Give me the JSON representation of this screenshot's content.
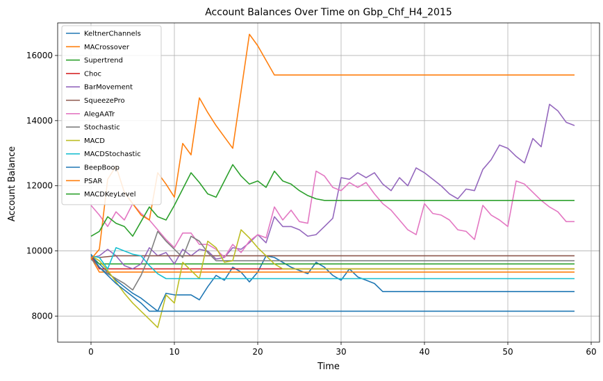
{
  "chart_data": {
    "type": "line",
    "title": "Account Balances Over Time on Gbp_Chf_H4_2015",
    "xlabel": "Time",
    "ylabel": "Account Balance",
    "xlim": [
      -4,
      61
    ],
    "ylim": [
      7200,
      17000
    ],
    "xticks": [
      0,
      10,
      20,
      30,
      40,
      50,
      60
    ],
    "yticks": [
      8000,
      10000,
      12000,
      14000,
      16000
    ],
    "grid": true,
    "legend_position": "top-left",
    "series": [
      {
        "name": "KeltnerChannels",
        "color": "#1f77b4",
        "points": [
          [
            0,
            9850
          ],
          [
            1,
            9600
          ],
          [
            2,
            9350
          ],
          [
            3,
            9100
          ],
          [
            4,
            8900
          ],
          [
            5,
            8700
          ],
          [
            6,
            8550
          ],
          [
            7,
            8350
          ],
          [
            8,
            8150
          ],
          [
            9,
            8700
          ],
          [
            10,
            8650
          ],
          [
            11,
            8650
          ],
          [
            12,
            8650
          ],
          [
            13,
            8500
          ],
          [
            14,
            8900
          ],
          [
            15,
            9250
          ],
          [
            16,
            9100
          ],
          [
            17,
            9500
          ],
          [
            18,
            9350
          ],
          [
            19,
            9050
          ],
          [
            20,
            9350
          ],
          [
            21,
            9850
          ],
          [
            22,
            9800
          ],
          [
            23,
            9650
          ],
          [
            24,
            9500
          ],
          [
            25,
            9400
          ],
          [
            26,
            9300
          ],
          [
            27,
            9650
          ],
          [
            28,
            9500
          ],
          [
            29,
            9250
          ],
          [
            30,
            9100
          ],
          [
            31,
            9450
          ],
          [
            32,
            9200
          ],
          [
            33,
            9100
          ],
          [
            34,
            9000
          ],
          [
            35,
            8750
          ],
          [
            58,
            8750
          ]
        ]
      },
      {
        "name": "MACrossover",
        "color": "#ff7f0e",
        "points": [
          [
            0,
            9800
          ],
          [
            1,
            9350
          ],
          [
            3,
            9350
          ],
          [
            58,
            9350
          ]
        ]
      },
      {
        "name": "Supertrend",
        "color": "#2ca02c",
        "points": [
          [
            0,
            9800
          ],
          [
            1,
            9600
          ],
          [
            3,
            9600
          ],
          [
            58,
            9600
          ]
        ]
      },
      {
        "name": "Choc",
        "color": "#d62728",
        "points": [
          [
            0,
            9850
          ],
          [
            1,
            9450
          ],
          [
            3,
            9450
          ],
          [
            58,
            9450
          ]
        ]
      },
      {
        "name": "BarMovement",
        "color": "#9467bd",
        "points": [
          [
            0,
            9800
          ],
          [
            1,
            9850
          ],
          [
            2,
            10050
          ],
          [
            3,
            9850
          ],
          [
            4,
            9550
          ],
          [
            5,
            9450
          ],
          [
            6,
            9600
          ],
          [
            7,
            10100
          ],
          [
            8,
            9850
          ],
          [
            9,
            9950
          ],
          [
            10,
            9600
          ],
          [
            11,
            10050
          ],
          [
            12,
            9850
          ],
          [
            13,
            10050
          ],
          [
            14,
            10000
          ],
          [
            15,
            9750
          ],
          [
            16,
            9800
          ],
          [
            17,
            10100
          ],
          [
            18,
            10050
          ],
          [
            19,
            10250
          ],
          [
            20,
            10500
          ],
          [
            21,
            10250
          ],
          [
            22,
            11050
          ],
          [
            23,
            10750
          ],
          [
            24,
            10750
          ],
          [
            25,
            10650
          ],
          [
            26,
            10450
          ],
          [
            27,
            10500
          ],
          [
            28,
            10750
          ],
          [
            29,
            11000
          ],
          [
            30,
            12250
          ],
          [
            31,
            12200
          ],
          [
            32,
            12400
          ],
          [
            33,
            12250
          ],
          [
            34,
            12400
          ],
          [
            35,
            12050
          ],
          [
            36,
            11850
          ],
          [
            37,
            12250
          ],
          [
            38,
            12000
          ],
          [
            39,
            12550
          ],
          [
            40,
            12400
          ],
          [
            41,
            12200
          ],
          [
            42,
            12000
          ],
          [
            43,
            11750
          ],
          [
            44,
            11600
          ],
          [
            45,
            11900
          ],
          [
            46,
            11850
          ],
          [
            47,
            12500
          ],
          [
            48,
            12800
          ],
          [
            49,
            13250
          ],
          [
            50,
            13150
          ],
          [
            51,
            12900
          ],
          [
            52,
            12700
          ],
          [
            53,
            13450
          ],
          [
            54,
            13200
          ],
          [
            55,
            14500
          ],
          [
            56,
            14300
          ],
          [
            57,
            13950
          ],
          [
            58,
            13850
          ]
        ]
      },
      {
        "name": "SqueezePro",
        "color": "#8c564b",
        "points": [
          [
            0,
            9850
          ],
          [
            1,
            9800
          ],
          [
            3,
            9850
          ],
          [
            58,
            9850
          ]
        ]
      },
      {
        "name": "AlegAATr",
        "color": "#e377c2",
        "points": [
          [
            0,
            11400
          ],
          [
            1,
            11100
          ],
          [
            2,
            10750
          ],
          [
            3,
            11200
          ],
          [
            4,
            10950
          ],
          [
            5,
            11450
          ],
          [
            6,
            11150
          ],
          [
            7,
            10950
          ],
          [
            8,
            10650
          ],
          [
            9,
            10350
          ],
          [
            10,
            10100
          ],
          [
            11,
            10550
          ],
          [
            12,
            10550
          ],
          [
            13,
            10200
          ],
          [
            14,
            10200
          ],
          [
            15,
            10050
          ],
          [
            16,
            9800
          ],
          [
            17,
            10200
          ],
          [
            18,
            9950
          ],
          [
            19,
            10300
          ],
          [
            20,
            10500
          ],
          [
            21,
            10400
          ],
          [
            22,
            11350
          ],
          [
            23,
            10950
          ],
          [
            24,
            11250
          ],
          [
            25,
            10900
          ],
          [
            26,
            10850
          ],
          [
            27,
            12450
          ],
          [
            28,
            12300
          ],
          [
            29,
            11950
          ],
          [
            30,
            11850
          ],
          [
            31,
            12100
          ],
          [
            32,
            11950
          ],
          [
            33,
            12100
          ],
          [
            34,
            11750
          ],
          [
            35,
            11450
          ],
          [
            36,
            11250
          ],
          [
            37,
            10950
          ],
          [
            38,
            10650
          ],
          [
            39,
            10500
          ],
          [
            40,
            11450
          ],
          [
            41,
            11150
          ],
          [
            42,
            11100
          ],
          [
            43,
            10950
          ],
          [
            44,
            10650
          ],
          [
            45,
            10600
          ],
          [
            46,
            10350
          ],
          [
            47,
            11400
          ],
          [
            48,
            11100
          ],
          [
            49,
            10950
          ],
          [
            50,
            10750
          ],
          [
            51,
            12150
          ],
          [
            52,
            12050
          ],
          [
            53,
            11800
          ],
          [
            54,
            11550
          ],
          [
            55,
            11350
          ],
          [
            56,
            11200
          ],
          [
            57,
            10900
          ],
          [
            58,
            10900
          ]
        ]
      },
      {
        "name": "Stochastic",
        "color": "#7f7f7f",
        "points": [
          [
            0,
            9750
          ],
          [
            1,
            9500
          ],
          [
            2,
            9300
          ],
          [
            3,
            9150
          ],
          [
            4,
            9000
          ],
          [
            5,
            8800
          ],
          [
            6,
            9250
          ],
          [
            7,
            9850
          ],
          [
            8,
            10600
          ],
          [
            9,
            10300
          ],
          [
            10,
            10050
          ],
          [
            11,
            9800
          ],
          [
            12,
            10450
          ],
          [
            13,
            10300
          ],
          [
            14,
            9950
          ],
          [
            15,
            9700
          ],
          [
            58,
            9700
          ]
        ]
      },
      {
        "name": "MACD",
        "color": "#bcbd22",
        "points": [
          [
            0,
            9850
          ],
          [
            1,
            9700
          ],
          [
            2,
            9400
          ],
          [
            3,
            9050
          ],
          [
            4,
            8700
          ],
          [
            5,
            8400
          ],
          [
            6,
            8150
          ],
          [
            7,
            7900
          ],
          [
            8,
            7650
          ],
          [
            9,
            8650
          ],
          [
            10,
            8400
          ],
          [
            11,
            9650
          ],
          [
            12,
            9400
          ],
          [
            13,
            9150
          ],
          [
            14,
            10300
          ],
          [
            15,
            10100
          ],
          [
            16,
            9650
          ],
          [
            17,
            9700
          ],
          [
            18,
            10650
          ],
          [
            19,
            10400
          ],
          [
            20,
            10100
          ],
          [
            21,
            9850
          ],
          [
            22,
            9600
          ],
          [
            23,
            9450
          ],
          [
            58,
            9450
          ]
        ]
      },
      {
        "name": "MACDStochastic",
        "color": "#17becf",
        "points": [
          [
            0,
            9850
          ],
          [
            1,
            9800
          ],
          [
            2,
            9450
          ],
          [
            3,
            10100
          ],
          [
            4,
            10000
          ],
          [
            5,
            9900
          ],
          [
            6,
            9850
          ],
          [
            7,
            9550
          ],
          [
            8,
            9300
          ],
          [
            9,
            9150
          ],
          [
            58,
            9150
          ]
        ]
      },
      {
        "name": "BeepBoop",
        "color": "#1f77b4",
        "points": [
          [
            0,
            9900
          ],
          [
            1,
            9500
          ],
          [
            2,
            9250
          ],
          [
            3,
            9000
          ],
          [
            4,
            8800
          ],
          [
            5,
            8600
          ],
          [
            6,
            8400
          ],
          [
            7,
            8150
          ],
          [
            58,
            8150
          ]
        ]
      },
      {
        "name": "PSAR",
        "color": "#ff7f0e",
        "points": [
          [
            0,
            9750
          ],
          [
            1,
            10050
          ],
          [
            2,
            12200
          ],
          [
            3,
            12600
          ],
          [
            4,
            11800
          ],
          [
            5,
            11450
          ],
          [
            6,
            11100
          ],
          [
            7,
            10950
          ],
          [
            8,
            12400
          ],
          [
            9,
            12050
          ],
          [
            10,
            11650
          ],
          [
            11,
            13300
          ],
          [
            12,
            12950
          ],
          [
            13,
            14700
          ],
          [
            14,
            14250
          ],
          [
            15,
            13850
          ],
          [
            16,
            13500
          ],
          [
            17,
            13150
          ],
          [
            18,
            14900
          ],
          [
            19,
            16650
          ],
          [
            20,
            16300
          ],
          [
            21,
            15850
          ],
          [
            22,
            15400
          ],
          [
            58,
            15400
          ]
        ]
      },
      {
        "name": "MACDKeyLevel",
        "color": "#2ca02c",
        "points": [
          [
            0,
            10450
          ],
          [
            1,
            10600
          ],
          [
            2,
            11050
          ],
          [
            3,
            10850
          ],
          [
            4,
            10750
          ],
          [
            5,
            10450
          ],
          [
            6,
            10900
          ],
          [
            7,
            11350
          ],
          [
            8,
            11050
          ],
          [
            9,
            10950
          ],
          [
            10,
            11400
          ],
          [
            11,
            11900
          ],
          [
            12,
            12400
          ],
          [
            13,
            12100
          ],
          [
            14,
            11750
          ],
          [
            15,
            11650
          ],
          [
            16,
            12150
          ],
          [
            17,
            12650
          ],
          [
            18,
            12300
          ],
          [
            19,
            12050
          ],
          [
            20,
            12150
          ],
          [
            21,
            11950
          ],
          [
            22,
            12450
          ],
          [
            23,
            12150
          ],
          [
            24,
            12050
          ],
          [
            25,
            11850
          ],
          [
            26,
            11700
          ],
          [
            27,
            11600
          ],
          [
            28,
            11550
          ],
          [
            58,
            11550
          ]
        ]
      }
    ]
  }
}
